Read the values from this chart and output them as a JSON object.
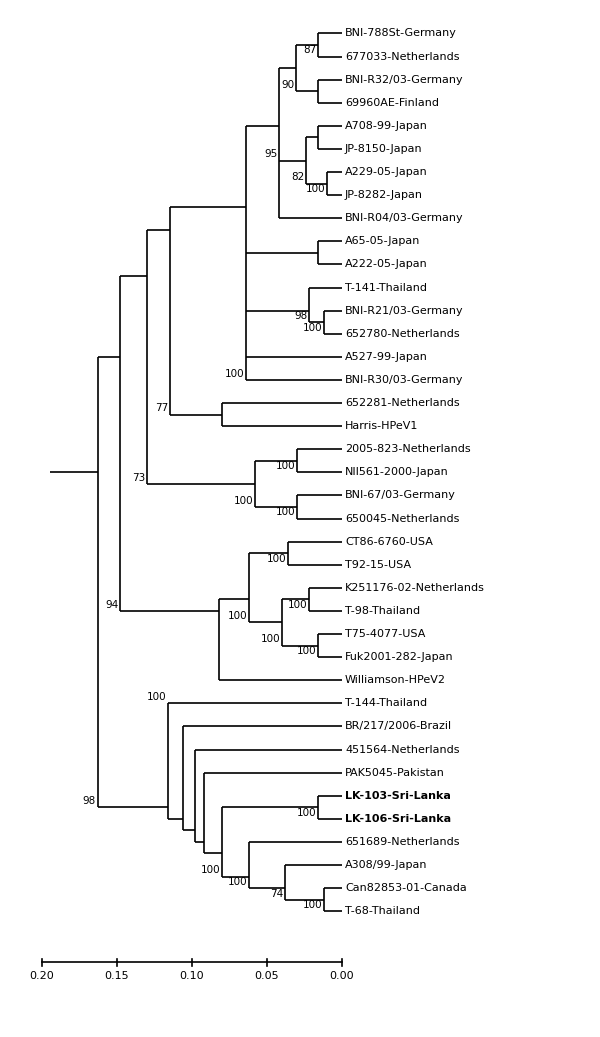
{
  "figure_width": 6.0,
  "figure_height": 10.37,
  "bg_color": "#ffffff",
  "taxa": [
    "BNI-788St-Germany",
    "677033-Netherlands",
    "BNI-R32/03-Germany",
    "69960AE-Finland",
    "A708-99-Japan",
    "JP-8150-Japan",
    "A229-05-Japan",
    "JP-8282-Japan",
    "BNI-R04/03-Germany",
    "A65-05-Japan",
    "A222-05-Japan",
    "T-141-Thailand",
    "BNI-R21/03-Germany",
    "652780-Netherlands",
    "A527-99-Japan",
    "BNI-R30/03-Germany",
    "652281-Netherlands",
    "Harris-HPeV1",
    "2005-823-Netherlands",
    "NII561-2000-Japan",
    "BNI-67/03-Germany",
    "650045-Netherlands",
    "CT86-6760-USA",
    "T92-15-USA",
    "K251176-02-Netherlands",
    "T-98-Thailand",
    "T75-4077-USA",
    "Fuk2001-282-Japan",
    "Williamson-HPeV2",
    "T-144-Thailand",
    "BR/217/2006-Brazil",
    "451564-Netherlands",
    "PAK5045-Pakistan",
    "LK-103-Sri-Lanka",
    "LK-106-Sri-Lanka",
    "651689-Netherlands",
    "A308/99-Japan",
    "Can82853-01-Canada",
    "T-68-Thailand"
  ],
  "bold_taxa": [
    "LK-103-Sri-Lanka",
    "LK-106-Sri-Lanka"
  ],
  "font_size": 8.0,
  "bootstrap_font_size": 7.5,
  "line_width": 1.2,
  "x_axis_ticks": [
    0.2,
    0.15,
    0.1,
    0.05,
    0.0
  ],
  "x_axis_labels": [
    "0.20",
    "0.15",
    "0.10",
    "0.05",
    "0.00"
  ]
}
